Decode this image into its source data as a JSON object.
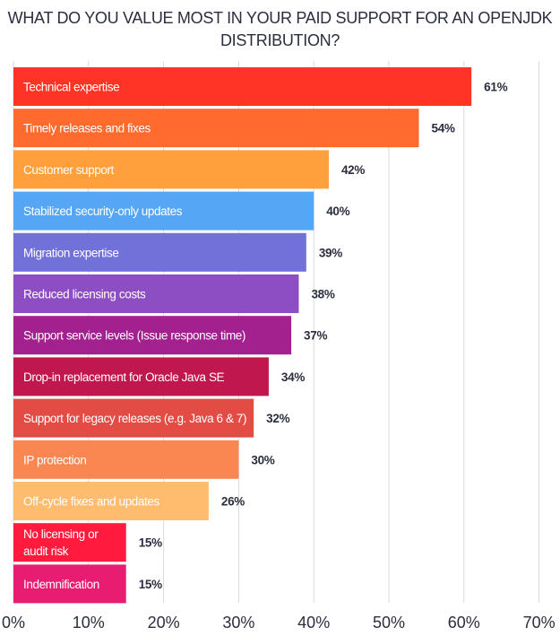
{
  "chart_data": {
    "type": "bar",
    "orientation": "horizontal",
    "title_lines": [
      "WHAT DO YOU VALUE MOST IN YOUR PAID SUPPORT FOR AN OPENJDK",
      "DISTRIBUTION?"
    ],
    "xlim": [
      0,
      70
    ],
    "xticks": [
      0,
      10,
      20,
      30,
      40,
      50,
      60,
      70
    ],
    "xtick_labels": [
      "0%",
      "10%",
      "20%",
      "30%",
      "40%",
      "50%",
      "60%",
      "70%"
    ],
    "grid": "vertical",
    "categories": [
      [
        "Technical expertise"
      ],
      [
        "Timely releases and fixes"
      ],
      [
        "Customer support"
      ],
      [
        "Stabilized security-only updates"
      ],
      [
        "Migration expertise"
      ],
      [
        "Reduced licensing costs"
      ],
      [
        "Support service levels (Issue response time)"
      ],
      [
        "Drop-in replacement for Oracle Java SE"
      ],
      [
        "Support for legacy releases (e.g.  Java 6 & 7)"
      ],
      [
        "IP protection"
      ],
      [
        "Off-cycle fixes and updates"
      ],
      [
        "No licensing or",
        "audit risk"
      ],
      [
        "Indemnification"
      ]
    ],
    "values": [
      61,
      54,
      42,
      40,
      39,
      38,
      37,
      34,
      32,
      30,
      26,
      15,
      15
    ],
    "value_labels": [
      "61%",
      "54%",
      "42%",
      "40%",
      "39%",
      "38%",
      "37%",
      "34%",
      "32%",
      "30%",
      "26%",
      "15%",
      "15%"
    ],
    "colors": [
      "#ff3426",
      "#ff6a2f",
      "#ffa03c",
      "#55a6f5",
      "#7270d9",
      "#8e4ec3",
      "#a3208f",
      "#c1174f",
      "#e24c45",
      "#fa8752",
      "#ffbc6e",
      "#ff1a3e",
      "#e81c70"
    ],
    "label_colors": [
      "#ffffff",
      "#ffffff",
      "#2a2d3e",
      "#ffffff",
      "#ffffff",
      "#ffffff",
      "#ffffff",
      "#ffffff",
      "#ffffff",
      "#ffffff",
      "#2a2d3e",
      "#ffffff",
      "#ffffff"
    ]
  }
}
